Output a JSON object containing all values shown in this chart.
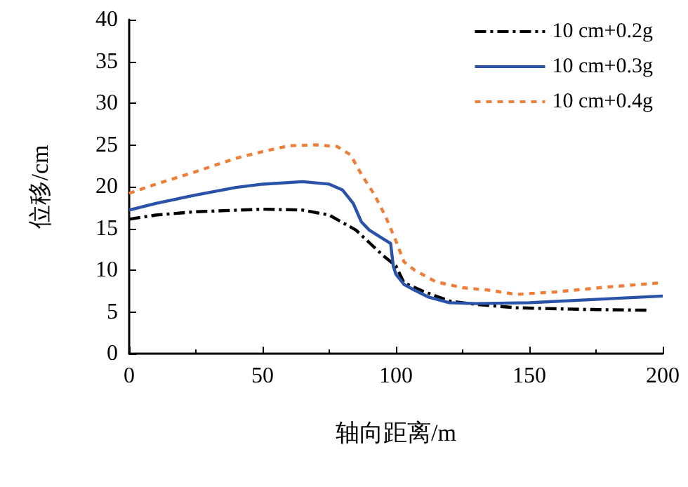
{
  "chart_data": {
    "type": "line",
    "xlabel": "轴向距离/m",
    "ylabel": "位移/cm",
    "xlim": [
      0,
      200
    ],
    "ylim": [
      0,
      40
    ],
    "xticks": [
      0,
      50,
      100,
      150,
      200
    ],
    "yticks": [
      0,
      5,
      10,
      15,
      20,
      25,
      30,
      35,
      40
    ],
    "grid": false,
    "legend": "top right",
    "marker": "none",
    "series": [
      {
        "name": "10 cm+0.2g",
        "color": "#000000",
        "line_style": "dashed",
        "x": [
          0,
          10,
          25,
          50,
          65,
          75,
          85,
          90,
          95,
          100,
          103,
          110,
          120,
          130,
          145,
          170,
          195
        ],
        "values": [
          16.1,
          16.6,
          17.0,
          17.3,
          17.2,
          16.6,
          14.8,
          13.3,
          11.8,
          10.5,
          8.5,
          7.5,
          6.3,
          5.9,
          5.5,
          5.3,
          5.2
        ]
      },
      {
        "name": "10 cm+0.3g",
        "color": "#2a52a8",
        "line_style": "solid",
        "x": [
          0,
          10,
          25,
          40,
          50,
          65,
          75,
          80,
          84,
          87,
          90,
          95,
          98,
          99,
          100,
          103,
          107,
          112,
          120,
          130,
          150,
          175,
          200
        ],
        "values": [
          17.2,
          18.0,
          19.0,
          19.9,
          20.3,
          20.6,
          20.3,
          19.6,
          18.0,
          15.8,
          14.8,
          13.8,
          13.2,
          10.5,
          9.5,
          8.3,
          7.6,
          6.8,
          6.1,
          6.0,
          6.1,
          6.5,
          6.9
        ]
      },
      {
        "name": "10 cm+0.4g",
        "color": "#ee7f3a",
        "line_style": "dotted",
        "x": [
          0,
          10,
          25,
          40,
          50,
          60,
          70,
          78,
          83,
          87,
          92,
          96,
          100,
          103,
          107,
          115,
          125,
          135,
          145,
          160,
          180,
          200
        ],
        "values": [
          19.2,
          20.3,
          21.8,
          23.4,
          24.2,
          24.9,
          25.0,
          24.8,
          23.8,
          21.5,
          19.0,
          16.5,
          13.5,
          11.0,
          10.0,
          8.6,
          7.9,
          7.6,
          7.1,
          7.4,
          8.0,
          8.5
        ]
      }
    ]
  }
}
